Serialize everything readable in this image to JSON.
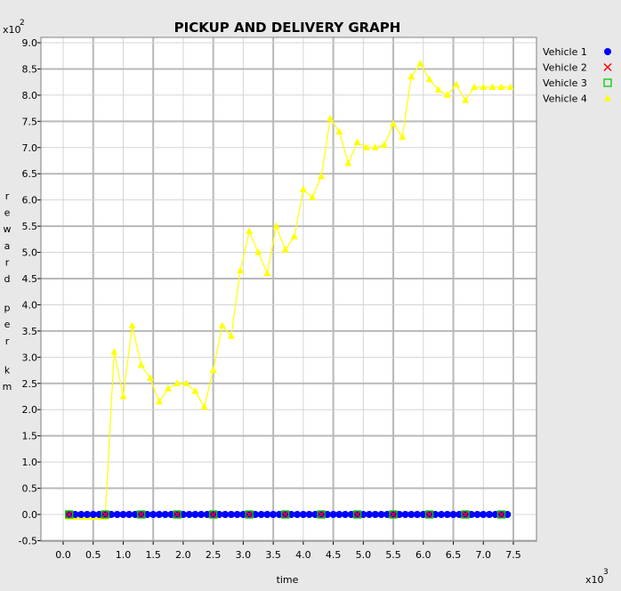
{
  "chart_data": {
    "type": "line",
    "title": "PICKUP AND DELIVERY GRAPH",
    "xlabel": "time",
    "ylabel": "reward per km",
    "x_scale_label": "x10",
    "x_scale_exp": "3",
    "y_scale_label": "x10",
    "y_scale_exp": "2",
    "xlim": [
      -0.35,
      7.8
    ],
    "ylim": [
      -0.55,
      9.1
    ],
    "x_ticks": [
      "0.0",
      "0.5",
      "1.0",
      "1.5",
      "2.0",
      "2.5",
      "3.0",
      "3.5",
      "4.0",
      "4.5",
      "5.0",
      "5.5",
      "6.0",
      "6.5",
      "7.0",
      "7.5"
    ],
    "y_ticks": [
      "-0.5",
      "0.0",
      "0.5",
      "1.0",
      "1.5",
      "2.0",
      "2.5",
      "3.0",
      "3.5",
      "4.0",
      "4.5",
      "5.0",
      "5.5",
      "6.0",
      "6.5",
      "7.0",
      "7.5",
      "8.0",
      "8.5",
      "9.0"
    ],
    "grid": true,
    "legend_position": "right",
    "series": [
      {
        "name": "Vehicle 1",
        "color": "#0000ff",
        "marker": "circle",
        "x": [
          0.1,
          0.2,
          0.3,
          0.4,
          0.5,
          0.6,
          0.7,
          0.8,
          0.9,
          1.0,
          1.1,
          1.2,
          1.3,
          1.4,
          1.5,
          1.6,
          1.7,
          1.8,
          1.9,
          2.0,
          2.1,
          2.2,
          2.3,
          2.4,
          2.5,
          2.6,
          2.7,
          2.8,
          2.9,
          3.0,
          3.1,
          3.2,
          3.3,
          3.4,
          3.5,
          3.6,
          3.7,
          3.8,
          3.9,
          4.0,
          4.1,
          4.2,
          4.3,
          4.4,
          4.5,
          4.6,
          4.7,
          4.8,
          4.9,
          5.0,
          5.1,
          5.2,
          5.3,
          5.4,
          5.5,
          5.6,
          5.7,
          5.8,
          5.9,
          6.0,
          6.1,
          6.2,
          6.3,
          6.4,
          6.5,
          6.6,
          6.7,
          6.8,
          6.9,
          7.0,
          7.1,
          7.2,
          7.3,
          7.4
        ],
        "y": [
          0,
          0,
          0,
          0,
          0,
          0,
          0,
          0,
          0,
          0,
          0,
          0,
          0,
          0,
          0,
          0,
          0,
          0,
          0,
          0,
          0,
          0,
          0,
          0,
          0,
          0,
          0,
          0,
          0,
          0,
          0,
          0,
          0,
          0,
          0,
          0,
          0,
          0,
          0,
          0,
          0,
          0,
          0,
          0,
          0,
          0,
          0,
          0,
          0,
          0,
          0,
          0,
          0,
          0,
          0,
          0,
          0,
          0,
          0,
          0,
          0,
          0,
          0,
          0,
          0,
          0,
          0,
          0,
          0,
          0,
          0,
          0,
          0,
          0
        ]
      },
      {
        "name": "Vehicle 2",
        "color": "#ff0000",
        "marker": "x",
        "x": [
          0.1,
          0.7,
          1.3,
          1.9,
          2.5,
          3.1,
          3.7,
          4.3,
          4.9,
          5.5,
          6.1,
          6.7,
          7.3
        ],
        "y": [
          0,
          0,
          0,
          0,
          0,
          0,
          0,
          0,
          0,
          0,
          0,
          0,
          0
        ]
      },
      {
        "name": "Vehicle 3",
        "color": "#00cc00",
        "marker": "square",
        "x": [
          0.1,
          0.7,
          1.3,
          1.9,
          2.5,
          3.1,
          3.7,
          4.3,
          4.9,
          5.5,
          6.1,
          6.7,
          7.3
        ],
        "y": [
          0,
          0,
          0,
          0,
          0,
          0,
          0,
          0,
          0,
          0,
          0,
          0,
          0
        ]
      },
      {
        "name": "Vehicle 4",
        "color": "#ffff00",
        "marker": "triangle",
        "x": [
          0.1,
          0.2,
          0.3,
          0.4,
          0.5,
          0.6,
          0.7,
          0.85,
          1.0,
          1.15,
          1.3,
          1.45,
          1.6,
          1.75,
          1.9,
          2.05,
          2.2,
          2.35,
          2.5,
          2.65,
          2.8,
          2.95,
          3.1,
          3.25,
          3.4,
          3.55,
          3.7,
          3.85,
          4.0,
          4.15,
          4.3,
          4.45,
          4.6,
          4.75,
          4.9,
          5.05,
          5.2,
          5.35,
          5.5,
          5.65,
          5.8,
          5.95,
          6.1,
          6.25,
          6.4,
          6.55,
          6.7,
          6.85,
          7.0,
          7.15,
          7.3,
          7.45
        ],
        "y": [
          -0.05,
          -0.05,
          -0.05,
          -0.05,
          -0.05,
          -0.05,
          -0.05,
          3.1,
          2.25,
          3.6,
          2.85,
          2.6,
          2.15,
          2.4,
          2.5,
          2.5,
          2.35,
          2.05,
          2.75,
          3.6,
          3.4,
          4.65,
          5.4,
          5.0,
          4.6,
          5.5,
          5.05,
          5.3,
          6.2,
          6.05,
          6.45,
          7.55,
          7.3,
          6.7,
          7.1,
          7.0,
          7.0,
          7.05,
          7.45,
          7.2,
          8.35,
          8.6,
          8.3,
          8.1,
          8.0,
          8.2,
          7.9,
          8.15,
          8.15,
          8.15,
          8.15,
          8.15
        ]
      }
    ]
  }
}
